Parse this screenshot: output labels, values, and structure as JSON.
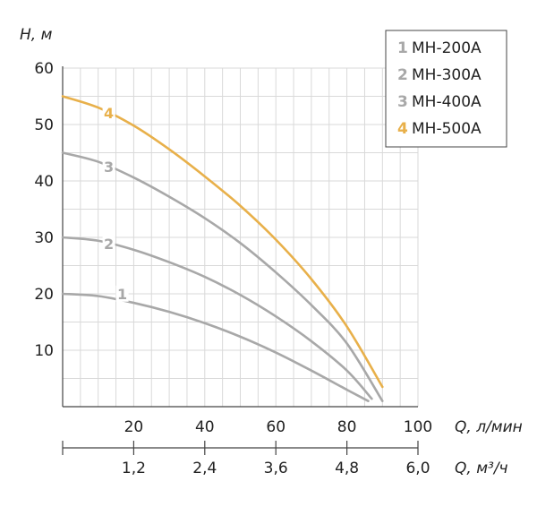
{
  "chart_data": {
    "type": "line",
    "y_axis": {
      "label": "H, м",
      "ticks": [
        10,
        20,
        30,
        40,
        50,
        60
      ],
      "ylim": [
        0,
        60
      ]
    },
    "x_axis_primary": {
      "label": "Q, л/мин",
      "ticks": [
        20,
        40,
        60,
        80,
        100
      ],
      "xlim": [
        0,
        100
      ]
    },
    "x_axis_secondary": {
      "label": "Q, м³/ч",
      "ticks": [
        "1,2",
        "2,4",
        "3,6",
        "4,8",
        "6,0"
      ]
    },
    "grid": true,
    "legend_position": "top-right",
    "series": [
      {
        "id": "1",
        "name": "MH-200A",
        "color": "#a8a8a8",
        "x": [
          0,
          10,
          20,
          30,
          40,
          50,
          60,
          70,
          80,
          86
        ],
        "y": [
          20,
          19.6,
          18.4,
          16.8,
          14.8,
          12.4,
          9.6,
          6.4,
          3,
          1
        ]
      },
      {
        "id": "2",
        "name": "MH-300A",
        "color": "#a8a8a8",
        "x": [
          0,
          10,
          20,
          30,
          40,
          50,
          60,
          70,
          80,
          87
        ],
        "y": [
          30,
          29.4,
          27.8,
          25.6,
          23,
          19.8,
          16,
          11.6,
          6.4,
          1.4
        ]
      },
      {
        "id": "3",
        "name": "MH-400A",
        "color": "#a8a8a8",
        "x": [
          0,
          10,
          20,
          30,
          40,
          50,
          60,
          70,
          80,
          90
        ],
        "y": [
          45,
          43.4,
          40.6,
          37.2,
          33.4,
          29,
          23.8,
          18,
          11.2,
          1
        ]
      },
      {
        "id": "4",
        "name": "MH-500A",
        "color": "#e8b04a",
        "x": [
          0,
          10,
          20,
          30,
          40,
          50,
          60,
          70,
          80,
          90
        ],
        "y": [
          55,
          53,
          49.8,
          45.6,
          40.8,
          35.6,
          29.6,
          22.6,
          14.2,
          3.5
        ]
      }
    ]
  }
}
